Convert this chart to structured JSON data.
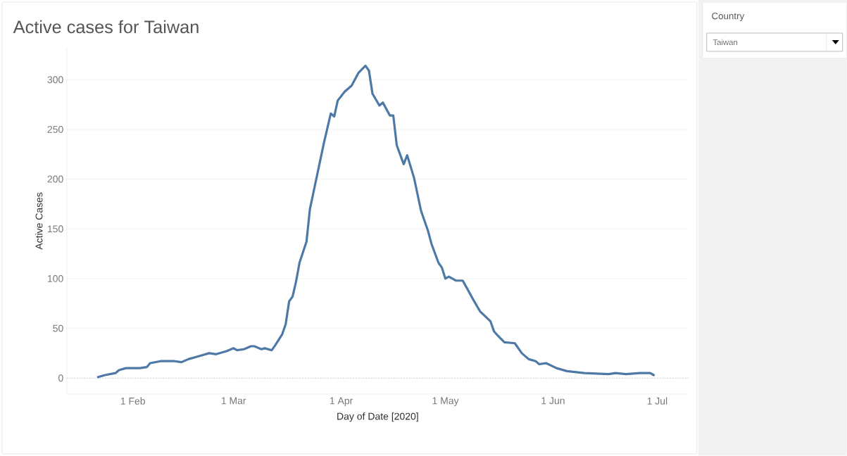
{
  "chart_data": {
    "type": "line",
    "title": "Active cases for Taiwan",
    "xlabel": "Day of Date [2020]",
    "ylabel": "Active Cases",
    "annotations": [
      "Country",
      "Taiwan"
    ],
    "x": [
      "2020-01-22",
      "2020-01-24",
      "2020-01-27",
      "2020-01-28",
      "2020-01-30",
      "2020-02-03",
      "2020-02-05",
      "2020-02-06",
      "2020-02-09",
      "2020-02-13",
      "2020-02-15",
      "2020-02-17",
      "2020-02-21",
      "2020-02-23",
      "2020-02-25",
      "2020-02-28",
      "2020-03-01",
      "2020-03-02",
      "2020-03-04",
      "2020-03-06",
      "2020-03-07",
      "2020-03-09",
      "2020-03-10",
      "2020-03-12",
      "2020-03-13",
      "2020-03-15",
      "2020-03-16",
      "2020-03-17",
      "2020-03-18",
      "2020-03-19",
      "2020-03-20",
      "2020-03-22",
      "2020-03-23",
      "2020-03-25",
      "2020-03-27",
      "2020-03-29",
      "2020-03-30",
      "2020-03-31",
      "2020-04-02",
      "2020-04-04",
      "2020-04-06",
      "2020-04-08",
      "2020-04-09",
      "2020-04-10",
      "2020-04-12",
      "2020-04-13",
      "2020-04-15",
      "2020-04-16",
      "2020-04-17",
      "2020-04-19",
      "2020-04-20",
      "2020-04-22",
      "2020-04-24",
      "2020-04-26",
      "2020-04-27",
      "2020-04-29",
      "2020-04-30",
      "2020-05-01",
      "2020-05-02",
      "2020-05-04",
      "2020-05-06",
      "2020-05-09",
      "2020-05-11",
      "2020-05-14",
      "2020-05-15",
      "2020-05-16",
      "2020-05-18",
      "2020-05-21",
      "2020-05-23",
      "2020-05-25",
      "2020-05-27",
      "2020-05-28",
      "2020-05-30",
      "2020-06-02",
      "2020-06-05",
      "2020-06-10",
      "2020-06-17",
      "2020-06-19",
      "2020-06-22",
      "2020-06-26",
      "2020-06-29",
      "2020-06-30"
    ],
    "series": [
      {
        "color": "#4e79a7",
        "values": [
          1,
          3,
          5,
          8,
          10,
          10,
          11,
          15,
          17,
          17,
          16,
          19,
          23,
          25,
          24,
          27,
          30,
          28,
          29,
          32,
          32,
          29,
          30,
          28,
          33,
          44,
          54,
          77,
          82,
          97,
          116,
          137,
          170,
          203,
          236,
          266,
          263,
          279,
          288,
          294,
          307,
          314,
          309,
          286,
          274,
          277,
          264,
          264,
          234,
          215,
          224,
          201,
          168,
          148,
          135,
          116,
          111,
          100,
          102,
          98,
          98,
          79,
          67,
          57,
          47,
          43,
          36,
          35,
          25,
          19,
          17,
          14,
          15,
          10,
          7,
          5,
          4,
          5,
          4,
          5,
          5,
          3
        ]
      }
    ],
    "xlim": [
      "2020-01-13",
      "2020-07-10"
    ],
    "xticks": [
      {
        "value": "2020-02-01",
        "label": "1 Feb"
      },
      {
        "value": "2020-03-01",
        "label": "1 Mar"
      },
      {
        "value": "2020-04-01",
        "label": "1 Apr"
      },
      {
        "value": "2020-05-01",
        "label": "1 May"
      },
      {
        "value": "2020-06-01",
        "label": "1 Jun"
      },
      {
        "value": "2020-07-01",
        "label": "1 Jul"
      }
    ],
    "ylim": [
      -16,
      332
    ],
    "yticks": [
      0,
      50,
      100,
      150,
      200,
      250,
      300
    ],
    "grid": "y",
    "line_style": "solid",
    "marker": "none",
    "ref_lines": [
      {
        "axis": "y",
        "value": 0,
        "color": "#b8b8b8",
        "line_style": "dotted"
      }
    ]
  }
}
